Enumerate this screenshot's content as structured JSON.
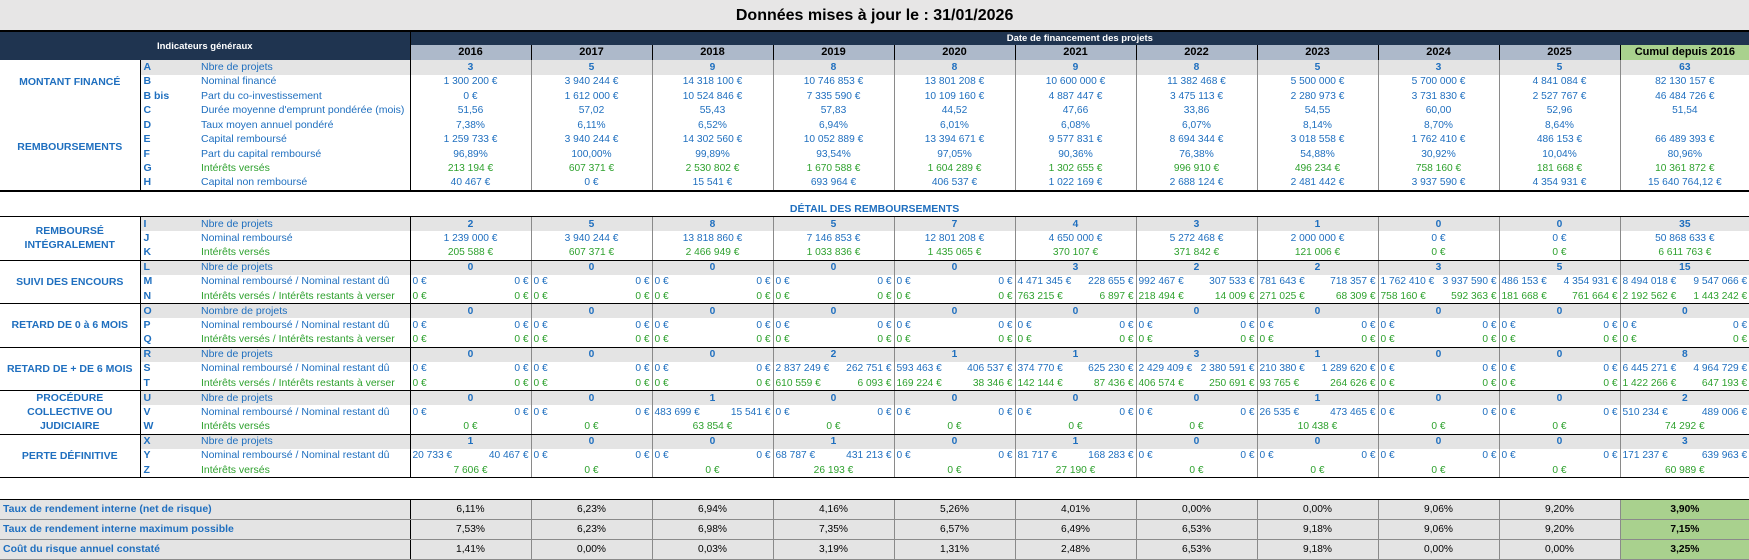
{
  "title": "Données mises à jour le : 31/01/2026",
  "header": {
    "left": "Indicateurs généraux",
    "dates": "Date de financement des projets",
    "columns": [
      "2016",
      "2017",
      "2018",
      "2019",
      "2020",
      "2021",
      "2022",
      "2023",
      "2024",
      "2025",
      "Cumul depuis 2016"
    ]
  },
  "summary": {
    "sections": [
      {
        "label": "MONTANT FINANCÉ",
        "rows": [
          {
            "code": "A",
            "label": "Nbre de projets",
            "values": [
              3,
              5,
              9,
              8,
              8,
              9,
              8,
              5,
              3,
              5,
              63
            ]
          },
          {
            "code": "B",
            "label": "Nominal financé",
            "values": [
              "1 300 200 €",
              "3 940 244 €",
              "14 318 100 €",
              "10 746 853 €",
              "13 801 208 €",
              "10 600 000 €",
              "11 382 468 €",
              "5 500 000 €",
              "5 700 000 €",
              "4 841 084 €",
              "82 130 157 €"
            ]
          },
          {
            "code": "B bis",
            "label": "Part du co-investissement",
            "values": [
              "0 €",
              "1 612 000 €",
              "10 524 846 €",
              "7 335 590 €",
              "10 109 160 €",
              "4 887 447 €",
              "3 475 113 €",
              "2 280 973 €",
              "3 731 830 €",
              "2 527 767 €",
              "46 484 726 €"
            ]
          }
        ]
      },
      {
        "label": "REMBOURSEMENTS",
        "rows": [
          {
            "code": "C",
            "label": "Durée moyenne d'emprunt pondérée (mois)",
            "values": [
              "51,56",
              "57,02",
              "55,43",
              "57,83",
              "44,52",
              "47,66",
              "33,86",
              "54,55",
              "60,00",
              "52,96",
              "51,54"
            ]
          },
          {
            "code": "D",
            "label": "Taux moyen annuel pondéré",
            "values": [
              "7,38%",
              "6,11%",
              "6,52%",
              "6,94%",
              "6,01%",
              "6,08%",
              "6,07%",
              "8,14%",
              "8,70%",
              "8,64%"
            ]
          },
          {
            "code": "E",
            "label": "Capital remboursé",
            "values": [
              "1 259 733 €",
              "3 940 244 €",
              "14 302 560 €",
              "10 052 889 €",
              "13 394 671 €",
              "9 577 831 €",
              "8 694 344 €",
              "3 018 558 €",
              "1 762 410 €",
              "486 153 €",
              "66 489 393 €"
            ]
          },
          {
            "code": "F",
            "label": "Part du capital remboursé",
            "values": [
              "96,89%",
              "100,00%",
              "99,89%",
              "93,54%",
              "97,05%",
              "90,36%",
              "76,38%",
              "54,88%",
              "30,92%",
              "10,04%",
              "80,96%"
            ]
          },
          {
            "code": "G",
            "label": "Intérêts versés",
            "values": [
              "213 194 €",
              "607 371 €",
              "2 530 802 €",
              "1 670 588 €",
              "1 604 289 €",
              "1 302 655 €",
              "996 910 €",
              "496 234 €",
              "758 160 €",
              "181 668 €",
              "10 361 872 €"
            ]
          },
          {
            "code": "H",
            "label": "Capital non remboursé",
            "values": [
              "40 467 €",
              "0 €",
              "15 541 €",
              "693 964 €",
              "406 537 €",
              "1 022 169 €",
              "2 688 124 €",
              "2 481 442 €",
              "3 937 590 €",
              "4 354 931 €",
              "15 640 764,12 €"
            ]
          }
        ]
      }
    ]
  },
  "detail": {
    "title": "DÉTAIL DES REMBOURSEMENTS",
    "sections": [
      {
        "label": "REMBOURSÉ INTÉGRALEMENT",
        "rows": [
          {
            "code": "I",
            "label": "Nbre de projets",
            "values": [
              2,
              5,
              8,
              5,
              7,
              4,
              3,
              1,
              0,
              0,
              35
            ]
          },
          {
            "code": "J",
            "label": "Nominal remboursé",
            "values": [
              "1 239 000 €",
              "3 940 244 €",
              "13 818 860 €",
              "7 146 853 €",
              "12 801 208 €",
              "4 650 000 €",
              "5 272 468 €",
              "2 000 000 €",
              "0 €",
              "0 €",
              "50 868 633 €"
            ]
          },
          {
            "code": "K",
            "label": "Intérêts versés",
            "values": [
              "205 588 €",
              "607 371 €",
              "2 466 949 €",
              "1 033 836 €",
              "1 435 065 €",
              "370 107 €",
              "371 842 €",
              "121 006 €",
              "0 €",
              "0 €",
              "6 611 763 €"
            ]
          }
        ]
      },
      {
        "label": "SUIVI DES ENCOURS",
        "rows": [
          {
            "code": "L",
            "label": "Nbre de projets",
            "values": [
              0,
              0,
              0,
              0,
              0,
              3,
              2,
              2,
              3,
              5,
              15
            ]
          },
          {
            "code": "M",
            "label": "Nominal remboursé / Nominal restant dû",
            "values": [
              [
                "0 €",
                "0 €"
              ],
              [
                "0 €",
                "0 €"
              ],
              [
                "0 €",
                "0 €"
              ],
              [
                "0 €",
                "0 €"
              ],
              [
                "0 €",
                "0 €"
              ],
              [
                "4 471 345 €",
                "228 655 €"
              ],
              [
                "992 467 €",
                "307 533 €"
              ],
              [
                "781 643 €",
                "718 357 €"
              ],
              [
                "1 762 410 €",
                "3 937 590 €"
              ],
              [
                "486 153 €",
                "4 354 931 €"
              ],
              [
                "8 494 018 €",
                "9 547 066 €"
              ]
            ]
          },
          {
            "code": "N",
            "label": "Intérêts versés / Intérêts restants à verser",
            "values": [
              [
                "0 €",
                "0 €"
              ],
              [
                "0 €",
                "0 €"
              ],
              [
                "0 €",
                "0 €"
              ],
              [
                "0 €",
                "0 €"
              ],
              [
                "0 €",
                "0 €"
              ],
              [
                "763 215 €",
                "6 897 €"
              ],
              [
                "218 494 €",
                "14 009 €"
              ],
              [
                "271 025 €",
                "68 309 €"
              ],
              [
                "758 160 €",
                "592 363 €"
              ],
              [
                "181 668 €",
                "761 664 €"
              ],
              [
                "2 192 562 €",
                "1 443 242 €"
              ]
            ]
          }
        ]
      },
      {
        "label": "RETARD DE 0 à 6 MOIS",
        "rows": [
          {
            "code": "O",
            "label": "Nombre de projets",
            "values": [
              0,
              0,
              0,
              0,
              0,
              0,
              0,
              0,
              0,
              0,
              0
            ]
          },
          {
            "code": "P",
            "label": "Nominal remboursé / Nominal restant dû",
            "values": [
              [
                "0 €",
                "0 €"
              ],
              [
                "0 €",
                "0 €"
              ],
              [
                "0 €",
                "0 €"
              ],
              [
                "0 €",
                "0 €"
              ],
              [
                "0 €",
                "0 €"
              ],
              [
                "0 €",
                "0 €"
              ],
              [
                "0 €",
                "0 €"
              ],
              [
                "0 €",
                "0 €"
              ],
              [
                "0 €",
                "0 €"
              ],
              [
                "0 €",
                "0 €"
              ],
              [
                "0 €",
                "0 €"
              ]
            ]
          },
          {
            "code": "Q",
            "label": "Intérêts versés / Intérêts restants à verser",
            "values": [
              [
                "0 €",
                "0 €"
              ],
              [
                "0 €",
                "0 €"
              ],
              [
                "0 €",
                "0 €"
              ],
              [
                "0 €",
                "0 €"
              ],
              [
                "0 €",
                "0 €"
              ],
              [
                "0 €",
                "0 €"
              ],
              [
                "0 €",
                "0 €"
              ],
              [
                "0 €",
                "0 €"
              ],
              [
                "0 €",
                "0 €"
              ],
              [
                "0 €",
                "0 €"
              ],
              [
                "0 €",
                "0 €"
              ]
            ]
          }
        ]
      },
      {
        "label": "RETARD DE + DE 6 MOIS",
        "rows": [
          {
            "code": "R",
            "label": "Nbre de projets",
            "values": [
              0,
              0,
              0,
              2,
              1,
              1,
              3,
              1,
              0,
              0,
              8
            ]
          },
          {
            "code": "S",
            "label": "Nominal remboursé / Nominal restant dû",
            "values": [
              [
                "0 €",
                "0 €"
              ],
              [
                "0 €",
                "0 €"
              ],
              [
                "0 €",
                "0 €"
              ],
              [
                "2 837 249 €",
                "262 751 €"
              ],
              [
                "593 463 €",
                "406 537 €"
              ],
              [
                "374 770 €",
                "625 230 €"
              ],
              [
                "2 429 409 €",
                "2 380 591 €"
              ],
              [
                "210 380 €",
                "1 289 620 €"
              ],
              [
                "0 €",
                "0 €"
              ],
              [
                "0 €",
                "0 €"
              ],
              [
                "6 445 271 €",
                "4 964 729 €"
              ]
            ]
          },
          {
            "code": "T",
            "label": "Intérêts versés / Intérêts restants à verser",
            "values": [
              [
                "0 €",
                "0 €"
              ],
              [
                "0 €",
                "0 €"
              ],
              [
                "0 €",
                "0 €"
              ],
              [
                "610 559 €",
                "6 093 €"
              ],
              [
                "169 224 €",
                "38 346 €"
              ],
              [
                "142 144 €",
                "87 436 €"
              ],
              [
                "406 574 €",
                "250 691 €"
              ],
              [
                "93 765 €",
                "264 626 €"
              ],
              [
                "0 €",
                "0 €"
              ],
              [
                "0 €",
                "0 €"
              ],
              [
                "1 422 266 €",
                "647 193 €"
              ]
            ]
          }
        ]
      },
      {
        "label": "PROCÉDURE COLLECTIVE OU JUDICIAIRE",
        "rows": [
          {
            "code": "U",
            "label": "Nbre de projets",
            "values": [
              0,
              0,
              1,
              0,
              0,
              0,
              0,
              1,
              0,
              0,
              2
            ]
          },
          {
            "code": "V",
            "label": "Nominal remboursé / Nominal restant dû",
            "values": [
              [
                "0 €",
                "0 €"
              ],
              [
                "0 €",
                "0 €"
              ],
              [
                "483 699 €",
                "15 541 €"
              ],
              [
                "0 €",
                "0 €"
              ],
              [
                "0 €",
                "0 €"
              ],
              [
                "0 €",
                "0 €"
              ],
              [
                "0 €",
                "0 €"
              ],
              [
                "26 535 €",
                "473 465 €"
              ],
              [
                "0 €",
                "0 €"
              ],
              [
                "0 €",
                "0 €"
              ],
              [
                "510 234 €",
                "489 006 €"
              ]
            ]
          },
          {
            "code": "W",
            "label": "Intérêts versés",
            "values": [
              "0 €",
              "0 €",
              "63 854 €",
              "0 €",
              "0 €",
              "0 €",
              "0 €",
              "10 438 €",
              "0 €",
              "0 €",
              "74 292 €"
            ]
          }
        ]
      },
      {
        "label": "PERTE DÉFINITIVE",
        "rows": [
          {
            "code": "X",
            "label": "Nbre de projets",
            "values": [
              1,
              0,
              0,
              1,
              0,
              1,
              0,
              0,
              0,
              0,
              3
            ]
          },
          {
            "code": "Y",
            "label": "Nominal remboursé / Nominal restant dû",
            "values": [
              [
                "20 733 €",
                "40 467 €"
              ],
              [
                "0 €",
                "0 €"
              ],
              [
                "0 €",
                "0 €"
              ],
              [
                "68 787 €",
                "431 213 €"
              ],
              [
                "0 €",
                "0 €"
              ],
              [
                "81 717 €",
                "168 283 €"
              ],
              [
                "0 €",
                "0 €"
              ],
              [
                "0 €",
                "0 €"
              ],
              [
                "0 €",
                "0 €"
              ],
              [
                "0 €",
                "0 €"
              ],
              [
                "171 237 €",
                "639 963 €"
              ]
            ]
          },
          {
            "code": "Z",
            "label": "Intérêts versés",
            "values": [
              "7 606 €",
              "0 €",
              "0 €",
              "26 193 €",
              "0 €",
              "27 190 €",
              "0 €",
              "0 €",
              "0 €",
              "0 €",
              "60 989 €"
            ]
          }
        ]
      }
    ]
  },
  "rates": [
    {
      "label": "Taux de rendement interne (net de risque)",
      "values": [
        "6,11%",
        "6,23%",
        "6,94%",
        "4,16%",
        "5,26%",
        "4,01%",
        "0,00%",
        "0,00%",
        "9,06%",
        "9,20%",
        "3,90%"
      ]
    },
    {
      "label": "Taux de rendement interne maximum possible",
      "values": [
        "7,53%",
        "6,23%",
        "6,98%",
        "7,35%",
        "6,57%",
        "6,49%",
        "6,53%",
        "9,18%",
        "9,06%",
        "9,20%",
        "7,15%"
      ]
    },
    {
      "label": "Coût du risque annuel constaté",
      "values": [
        "1,41%",
        "0,00%",
        "0,03%",
        "3,19%",
        "1,31%",
        "2,48%",
        "6,53%",
        "9,18%",
        "0,00%",
        "0,00%",
        "3,25%"
      ]
    }
  ]
}
